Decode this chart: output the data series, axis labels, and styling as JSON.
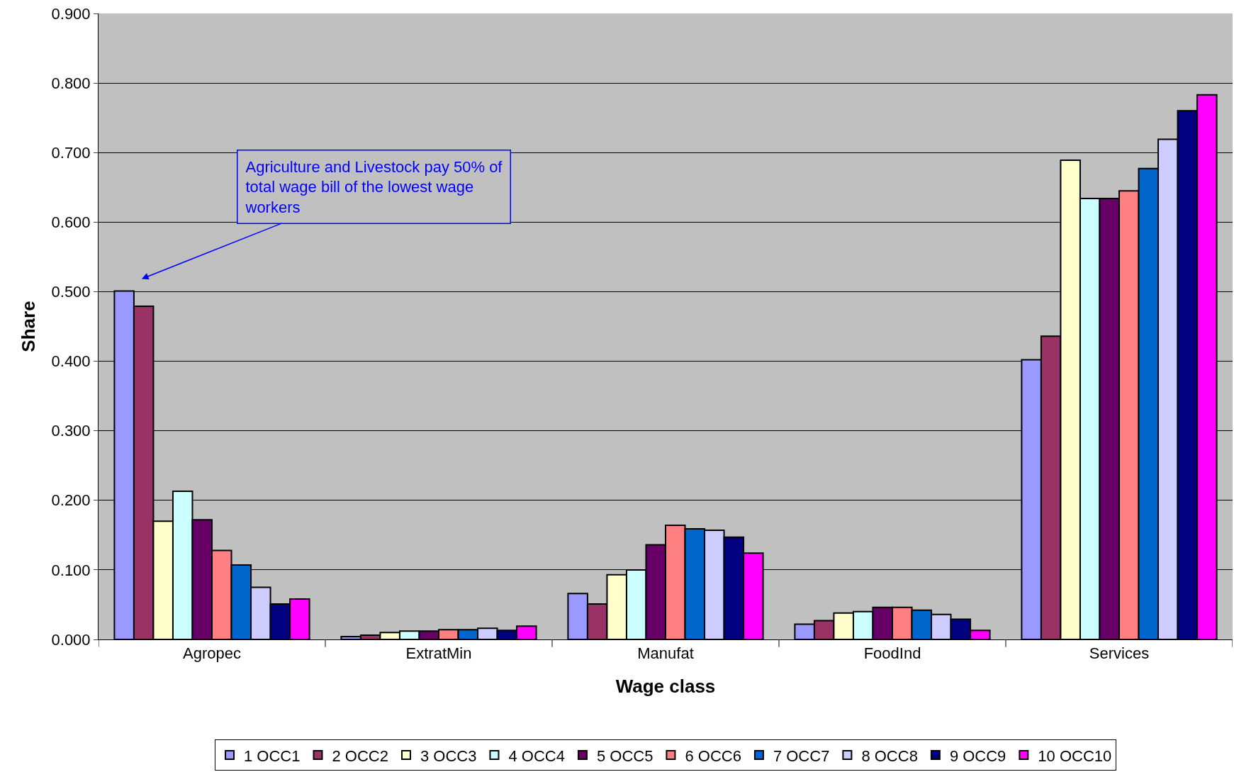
{
  "chart_data": {
    "type": "bar",
    "xlabel": "Wage class",
    "ylabel": "Share",
    "categories": [
      "Agropec",
      "ExtratMin",
      "Manufat",
      "FoodInd",
      "Services"
    ],
    "series": [
      {
        "name": "1 OCC1",
        "color": "#9999ff",
        "values": [
          0.501,
          0.004,
          0.066,
          0.022,
          0.402
        ]
      },
      {
        "name": "2 OCC2",
        "color": "#993366",
        "values": [
          0.479,
          0.006,
          0.051,
          0.027,
          0.436
        ]
      },
      {
        "name": "3 OCC3",
        "color": "#ffffcc",
        "values": [
          0.17,
          0.01,
          0.093,
          0.038,
          0.689
        ]
      },
      {
        "name": "4 OCC4",
        "color": "#ccffff",
        "values": [
          0.213,
          0.012,
          0.1,
          0.04,
          0.634
        ]
      },
      {
        "name": "5 OCC5",
        "color": "#660066",
        "values": [
          0.172,
          0.012,
          0.136,
          0.046,
          0.634
        ]
      },
      {
        "name": "6 OCC6",
        "color": "#ff8080",
        "values": [
          0.128,
          0.014,
          0.164,
          0.046,
          0.645
        ]
      },
      {
        "name": "7 OCC7",
        "color": "#0066cc",
        "values": [
          0.107,
          0.014,
          0.159,
          0.042,
          0.677
        ]
      },
      {
        "name": "8 OCC8",
        "color": "#ccccff",
        "values": [
          0.075,
          0.016,
          0.157,
          0.036,
          0.719
        ]
      },
      {
        "name": "9 OCC9",
        "color": "#000080",
        "values": [
          0.051,
          0.013,
          0.147,
          0.029,
          0.76
        ]
      },
      {
        "name": "10 OCC10",
        "color": "#ff00ff",
        "values": [
          0.058,
          0.019,
          0.124,
          0.013,
          0.783
        ]
      }
    ],
    "ylim": [
      0,
      0.9
    ],
    "yticks": [
      {
        "value": 0,
        "label": "0.000"
      },
      {
        "value": 0.1,
        "label": "0.100"
      },
      {
        "value": 0.2,
        "label": "0.200"
      },
      {
        "value": 0.3,
        "label": "0.300"
      },
      {
        "value": 0.4,
        "label": "0.400"
      },
      {
        "value": 0.5,
        "label": "0.500"
      },
      {
        "value": 0.6,
        "label": "0.600"
      },
      {
        "value": 0.7,
        "label": "0.700"
      },
      {
        "value": 0.8,
        "label": "0.800"
      },
      {
        "value": 0.9,
        "label": "0.900"
      }
    ],
    "grid": "y",
    "legend": "bottom",
    "annotations": [
      "Agriculture and Livestock pay 50% of total wage bill of the lowest wage workers"
    ]
  }
}
